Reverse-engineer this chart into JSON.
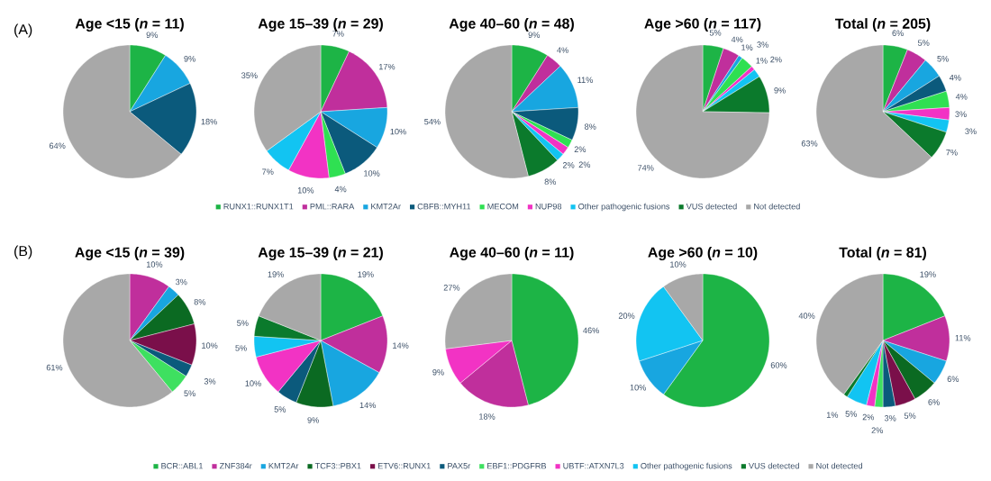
{
  "chart_data": [
    {
      "type": "pie",
      "title": "Age <15 (*n* = 11)",
      "annotations": [
        "(A)"
      ],
      "categories": [
        null,
        null,
        null,
        null,
        null,
        null,
        null,
        null,
        null
      ],
      "values": [
        9,
        null,
        9,
        18,
        null,
        null,
        null,
        null,
        64
      ],
      "value_labels": [
        "9%",
        null,
        "9%",
        "18%",
        null,
        null,
        null,
        null,
        "64%"
      ],
      "colors": [
        "#1db446",
        "#c02f9c",
        "#18a6e0",
        "#0b5a7c",
        "#2fe052",
        "#f233c4",
        "#12c4f2",
        "#0b7a2c",
        "#a8a8a8"
      ]
    },
    {
      "type": "pie",
      "title": "Age 15–39 (*n* = 29)",
      "categories": [
        null,
        null,
        null,
        null,
        null,
        null,
        null,
        null,
        null
      ],
      "values": [
        7,
        17,
        10,
        10,
        4,
        10,
        7,
        null,
        35
      ],
      "value_labels": [
        "7%",
        "17%",
        "10%",
        "10%",
        "4%",
        "10%",
        "7%",
        null,
        "35%"
      ],
      "colors": [
        "#1db446",
        "#c02f9c",
        "#18a6e0",
        "#0b5a7c",
        "#2fe052",
        "#f233c4",
        "#12c4f2",
        "#0b7a2c",
        "#a8a8a8"
      ]
    },
    {
      "type": "pie",
      "title": "Age 40–60 (*n* = 48)",
      "legend": "bottom",
      "categories": [
        "RUNX1::RUNX1T1",
        "PML::RARA",
        "KMT2Ar",
        "CBFB::MYH11",
        "MECOM",
        "NUP98",
        "Other pathogenic fusions",
        "VUS detected",
        "Not detected"
      ],
      "values": [
        9,
        4,
        11,
        8,
        2,
        2,
        2,
        8,
        54
      ],
      "value_labels": [
        "9%",
        "4%",
        "11%",
        "8%",
        "2%",
        "2%",
        "2%",
        "8%",
        "54%"
      ],
      "colors": [
        "#1db446",
        "#c02f9c",
        "#18a6e0",
        "#0b5a7c",
        "#2fe052",
        "#f233c4",
        "#12c4f2",
        "#0b7a2c",
        "#a8a8a8"
      ]
    },
    {
      "type": "pie",
      "title": "Age >60 (*n* = 117)",
      "categories": [
        null,
        null,
        null,
        null,
        null,
        null,
        null,
        null,
        null
      ],
      "values": [
        5,
        4,
        1,
        null,
        3,
        1,
        2,
        9,
        74
      ],
      "value_labels": [
        "5%",
        "4%",
        "1%",
        null,
        "3%",
        "1%",
        "2%",
        "9%",
        "74%"
      ],
      "colors": [
        "#1db446",
        "#c02f9c",
        "#18a6e0",
        "#0b5a7c",
        "#2fe052",
        "#f233c4",
        "#12c4f2",
        "#0b7a2c",
        "#a8a8a8"
      ]
    },
    {
      "type": "pie",
      "title": "Total (*n* = 205)",
      "categories": [
        null,
        null,
        null,
        null,
        null,
        null,
        null,
        null,
        null
      ],
      "values": [
        6,
        5,
        5,
        4,
        4,
        3,
        3,
        7,
        63
      ],
      "value_labels": [
        "6%",
        "5%",
        "5%",
        "4%",
        "4%",
        "3%",
        "3%",
        "7%",
        "63%"
      ],
      "colors": [
        "#1db446",
        "#c02f9c",
        "#18a6e0",
        "#0b5a7c",
        "#2fe052",
        "#f233c4",
        "#12c4f2",
        "#0b7a2c",
        "#a8a8a8"
      ]
    },
    {
      "type": "pie",
      "title": "Age <15 (*n* = 39)",
      "annotations": [
        "(B)"
      ],
      "categories": [
        null,
        null,
        null,
        null,
        null,
        null,
        null,
        null,
        null,
        null,
        null
      ],
      "values": [
        null,
        10,
        3,
        8,
        10,
        3,
        5,
        null,
        null,
        null,
        61
      ],
      "value_labels": [
        null,
        "10%",
        "3%",
        "8%",
        "10%",
        "3%",
        "5%",
        null,
        null,
        null,
        "61%"
      ],
      "colors": [
        "#1db446",
        "#c02f9c",
        "#18a6e0",
        "#0b6a22",
        "#7a0f4a",
        "#0b5a7c",
        "#3ee060",
        "#f233c4",
        "#12c4f2",
        "#0b7a2c",
        "#a8a8a8"
      ]
    },
    {
      "type": "pie",
      "title": "Age 15–39 (*n* = 21)",
      "categories": [
        null,
        null,
        null,
        null,
        null,
        null,
        null,
        null,
        null,
        null,
        null
      ],
      "values": [
        19,
        14,
        14,
        9,
        null,
        5,
        null,
        10,
        5,
        5,
        19
      ],
      "value_labels": [
        "19%",
        "14%",
        "14%",
        "9%",
        null,
        "5%",
        null,
        "10%",
        "5%",
        "5%",
        "19%"
      ],
      "colors": [
        "#1db446",
        "#c02f9c",
        "#18a6e0",
        "#0b6a22",
        "#7a0f4a",
        "#0b5a7c",
        "#3ee060",
        "#f233c4",
        "#12c4f2",
        "#0b7a2c",
        "#a8a8a8"
      ]
    },
    {
      "type": "pie",
      "title": "Age 40–60 (*n* = 11)",
      "legend": "bottom",
      "categories": [
        "BCR::ABL1",
        "ZNF384r",
        "KMT2Ar",
        "TCF3::PBX1",
        "ETV6::RUNX1",
        "PAX5r",
        "EBF1::PDGFRB",
        "UBTF::ATXN7L3",
        "Other pathogenic fusions",
        "VUS detected",
        "Not detected"
      ],
      "values": [
        46,
        18,
        null,
        null,
        null,
        null,
        null,
        9,
        null,
        null,
        27
      ],
      "value_labels": [
        "46%",
        "18%",
        null,
        null,
        null,
        null,
        null,
        "9%",
        null,
        null,
        "27%"
      ],
      "colors": [
        "#1db446",
        "#c02f9c",
        "#18a6e0",
        "#0b6a22",
        "#7a0f4a",
        "#0b5a7c",
        "#3ee060",
        "#f233c4",
        "#12c4f2",
        "#0b7a2c",
        "#a8a8a8"
      ]
    },
    {
      "type": "pie",
      "title": "Age >60 (*n* = 10)",
      "categories": [
        null,
        null,
        null,
        null,
        null,
        null,
        null,
        null,
        null,
        null,
        null
      ],
      "values": [
        60,
        null,
        10,
        null,
        null,
        null,
        null,
        null,
        20,
        null,
        10
      ],
      "value_labels": [
        "60%",
        null,
        "10%",
        null,
        null,
        null,
        null,
        null,
        "20%",
        null,
        "10%"
      ],
      "colors": [
        "#1db446",
        "#c02f9c",
        "#18a6e0",
        "#0b6a22",
        "#7a0f4a",
        "#0b5a7c",
        "#3ee060",
        "#f233c4",
        "#12c4f2",
        "#0b7a2c",
        "#a8a8a8"
      ]
    },
    {
      "type": "pie",
      "title": "Total (*n* = 81)",
      "categories": [
        null,
        null,
        null,
        null,
        null,
        null,
        null,
        null,
        null,
        null,
        null
      ],
      "values": [
        19,
        11,
        6,
        6,
        5,
        3,
        2,
        2,
        5,
        1,
        40
      ],
      "value_labels": [
        "19%",
        "11%",
        "6%",
        "6%",
        "5%",
        "3%",
        "2%",
        "2%",
        "5%",
        "1%",
        "40%"
      ],
      "colors": [
        "#1db446",
        "#c02f9c",
        "#18a6e0",
        "#0b6a22",
        "#7a0f4a",
        "#0b5a7c",
        "#3ee060",
        "#f233c4",
        "#12c4f2",
        "#0b7a2c",
        "#a8a8a8"
      ]
    }
  ]
}
